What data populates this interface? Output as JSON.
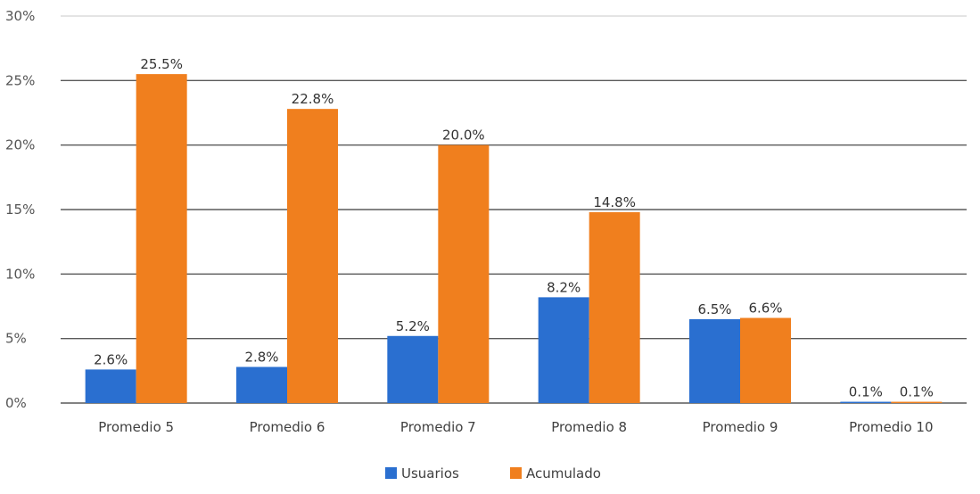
{
  "chart_data": {
    "type": "bar",
    "categories": [
      "Promedio 5",
      "Promedio 6",
      "Promedio 7",
      "Promedio 8",
      "Promedio 9",
      "Promedio 10"
    ],
    "series": [
      {
        "name": "Usuarios",
        "color": "#2a6fd0",
        "values": [
          2.6,
          2.8,
          5.2,
          8.2,
          6.5,
          0.1
        ],
        "labels": [
          "2.6%",
          "2.8%",
          "5.2%",
          "8.2%",
          "6.5%",
          "0.1%"
        ]
      },
      {
        "name": "Acumulado",
        "color": "#f07f1e",
        "values": [
          25.5,
          22.8,
          20.0,
          14.8,
          6.6,
          0.1
        ],
        "labels": [
          "25.5%",
          "22.8%",
          "20.0%",
          "14.8%",
          "6.6%",
          "0.1%"
        ]
      }
    ],
    "ylim": [
      0,
      30
    ],
    "yticks": [
      0,
      5,
      10,
      15,
      20,
      25,
      30
    ],
    "ytick_labels": [
      "0%",
      "5%",
      "10%",
      "15%",
      "20%",
      "25%",
      "30%"
    ],
    "grid": true,
    "legend": "bottom-center",
    "title": "",
    "xlabel": "",
    "ylabel": ""
  }
}
